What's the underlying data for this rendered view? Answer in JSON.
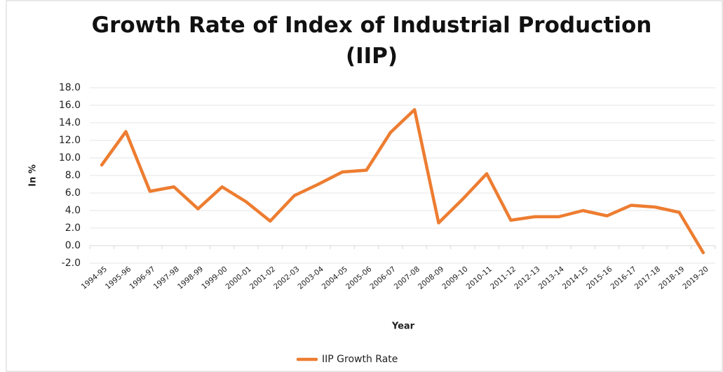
{
  "chart_data": {
    "type": "line",
    "title": "Growth Rate of Index of Industrial Production (IIP)",
    "x_label": "Year",
    "y_label": "In %",
    "categories": [
      "1994-95",
      "1995-96",
      "1996-97",
      "1997-98",
      "1998-99",
      "1999-00",
      "2000-01",
      "2001-02",
      "2002-03",
      "2003-04",
      "2004-05",
      "2005-06",
      "2006-07",
      "2007-08",
      "2008-09",
      "2009-10",
      "2010-11",
      "2011-12",
      "2012-13",
      "2013-14",
      "2014-15",
      "2015-16",
      "2016-17",
      "2017-18",
      "2018-19",
      "2019-20"
    ],
    "series": [
      {
        "name": "IIP Growth Rate",
        "color": "#ed7d31",
        "values": [
          9.2,
          13.0,
          6.2,
          6.7,
          4.2,
          6.7,
          5.0,
          2.8,
          5.7,
          7.0,
          8.4,
          8.6,
          12.9,
          15.5,
          2.6,
          5.3,
          8.2,
          2.9,
          3.3,
          3.3,
          4.0,
          3.4,
          4.6,
          4.4,
          3.8,
          -0.8
        ]
      }
    ],
    "ylim": [
      -2,
      18
    ],
    "yticks": [
      {
        "value": -2,
        "label": "-2.0"
      },
      {
        "value": 0,
        "label": "0.0"
      },
      {
        "value": 2,
        "label": "2.0"
      },
      {
        "value": 4,
        "label": "4.0"
      },
      {
        "value": 6,
        "label": "6.0"
      },
      {
        "value": 8,
        "label": "8.0"
      },
      {
        "value": 10,
        "label": "10.0"
      },
      {
        "value": 12,
        "label": "12.0"
      },
      {
        "value": 14,
        "label": "14.0"
      },
      {
        "value": 16,
        "label": "16.0"
      },
      {
        "value": 18,
        "label": "18.0"
      }
    ],
    "grid": true,
    "legend": "bottom"
  }
}
